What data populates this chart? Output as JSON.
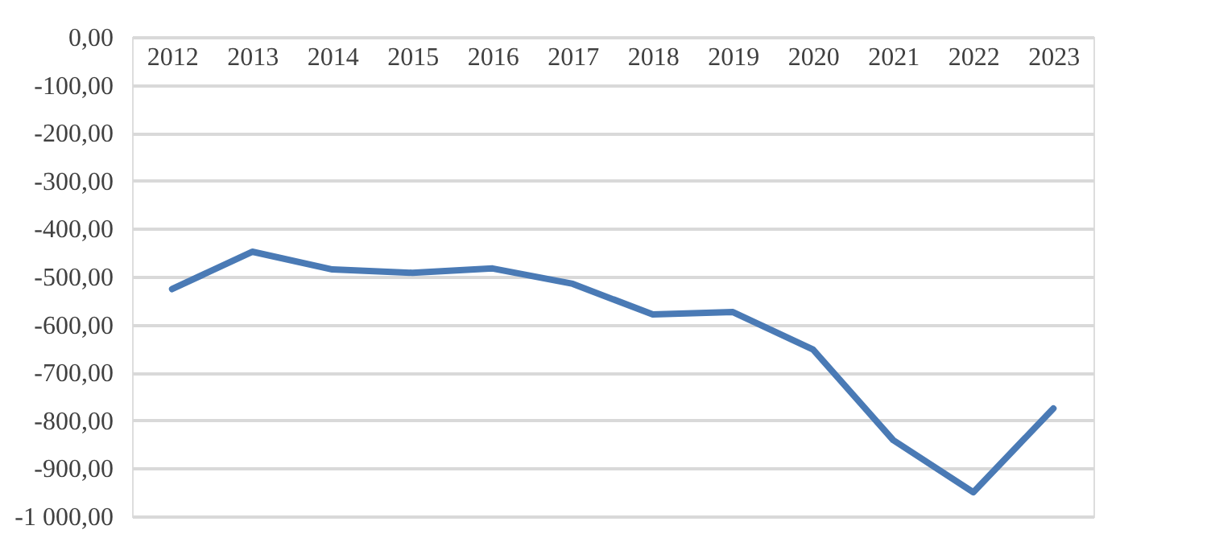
{
  "chart_data": {
    "type": "line",
    "categories": [
      "2012",
      "2013",
      "2014",
      "2015",
      "2016",
      "2017",
      "2018",
      "2019",
      "2020",
      "2021",
      "2022",
      "2023"
    ],
    "series": [
      {
        "color": "#4a7ab5",
        "values": [
          -526,
          -448,
          -485,
          -492,
          -483,
          -515,
          -579,
          -574,
          -652,
          -841,
          -950,
          -775
        ]
      }
    ],
    "ylim": [
      -1000,
      0
    ],
    "yticks": [
      {
        "value": 0,
        "label": "0,00"
      },
      {
        "value": -100,
        "label": "-100,00"
      },
      {
        "value": -200,
        "label": "-200,00"
      },
      {
        "value": -300,
        "label": "-300,00"
      },
      {
        "value": -400,
        "label": "-400,00"
      },
      {
        "value": -500,
        "label": "-500,00"
      },
      {
        "value": -600,
        "label": "-600,00"
      },
      {
        "value": -700,
        "label": "-700,00"
      },
      {
        "value": -800,
        "label": "-800,00"
      },
      {
        "value": -900,
        "label": "-900,00"
      },
      {
        "value": -1000,
        "label": "-1 000,00"
      }
    ],
    "grid": "y",
    "marker": "none",
    "line_style": "solid"
  }
}
